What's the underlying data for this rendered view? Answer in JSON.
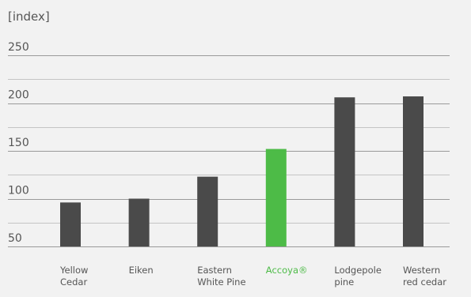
{
  "chart_data": {
    "type": "bar",
    "unit_label": "[index]",
    "categories": [
      [
        "Yellow",
        "Cedar"
      ],
      [
        "Eiken"
      ],
      [
        "Eastern",
        "White Pine"
      ],
      [
        "Accoya®"
      ],
      [
        "Lodgepole",
        "pine"
      ],
      [
        "Western",
        "red cedar"
      ]
    ],
    "values": [
      96,
      100,
      123,
      152,
      206,
      207
    ],
    "highlight_index": 3,
    "colors": {
      "bar": "#4a4a4a",
      "highlight": "#4dbb47",
      "highlight_label": "#4dbb47"
    },
    "ylim": [
      50,
      250
    ],
    "y_ticks": [
      50,
      100,
      150,
      200,
      250
    ],
    "grid": true,
    "legend": "none"
  }
}
